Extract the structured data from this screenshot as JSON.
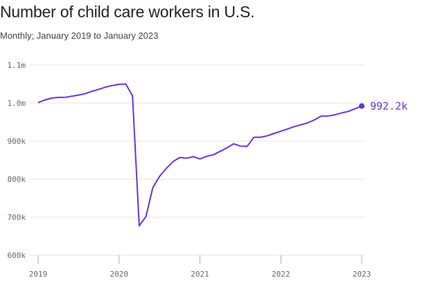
{
  "chart_data": {
    "type": "line",
    "title": "Number of child care workers in U.S.",
    "subtitle": "Monthly; January 2019 to January 2023",
    "xlabel": "",
    "ylabel": "",
    "color": "#6633dd",
    "ylim": [
      600000,
      1100000
    ],
    "yticks": [
      600000,
      700000,
      800000,
      900000,
      1000000,
      1100000
    ],
    "ytick_labels": [
      "600k",
      "700k",
      "800k",
      "900k",
      "1.0m",
      "1.1m"
    ],
    "xticks": [
      2019,
      2020,
      2021,
      2022,
      2023
    ],
    "xtick_labels": [
      "2019",
      "2020",
      "2021",
      "2022",
      "2023"
    ],
    "grid": true,
    "end_label": "992.2k",
    "series": [
      {
        "x": [
          "2019-01",
          "2019-02",
          "2019-03",
          "2019-04",
          "2019-05",
          "2019-06",
          "2019-07",
          "2019-08",
          "2019-09",
          "2019-10",
          "2019-11",
          "2019-12",
          "2020-01",
          "2020-02",
          "2020-03",
          "2020-04",
          "2020-05",
          "2020-06",
          "2020-07",
          "2020-08",
          "2020-09",
          "2020-10",
          "2020-11",
          "2020-12",
          "2021-01",
          "2021-02",
          "2021-03",
          "2021-04",
          "2021-05",
          "2021-06",
          "2021-07",
          "2021-08",
          "2021-09",
          "2021-10",
          "2021-11",
          "2021-12",
          "2022-01",
          "2022-02",
          "2022-03",
          "2022-04",
          "2022-05",
          "2022-06",
          "2022-07",
          "2022-08",
          "2022-09",
          "2022-10",
          "2022-11",
          "2022-12",
          "2023-01"
        ],
        "values": [
          1001000,
          1008000,
          1013000,
          1015000,
          1015000,
          1018000,
          1021000,
          1025000,
          1031000,
          1036000,
          1042000,
          1046000,
          1049000,
          1050000,
          1019000,
          677000,
          702000,
          777000,
          807000,
          828000,
          846000,
          857000,
          855000,
          859000,
          853000,
          860000,
          864000,
          873000,
          882000,
          893000,
          887000,
          886000,
          910000,
          910000,
          914000,
          920000,
          926000,
          932000,
          938000,
          943000,
          948000,
          956000,
          966000,
          966000,
          969000,
          974000,
          978000,
          985000,
          992200
        ]
      }
    ]
  }
}
